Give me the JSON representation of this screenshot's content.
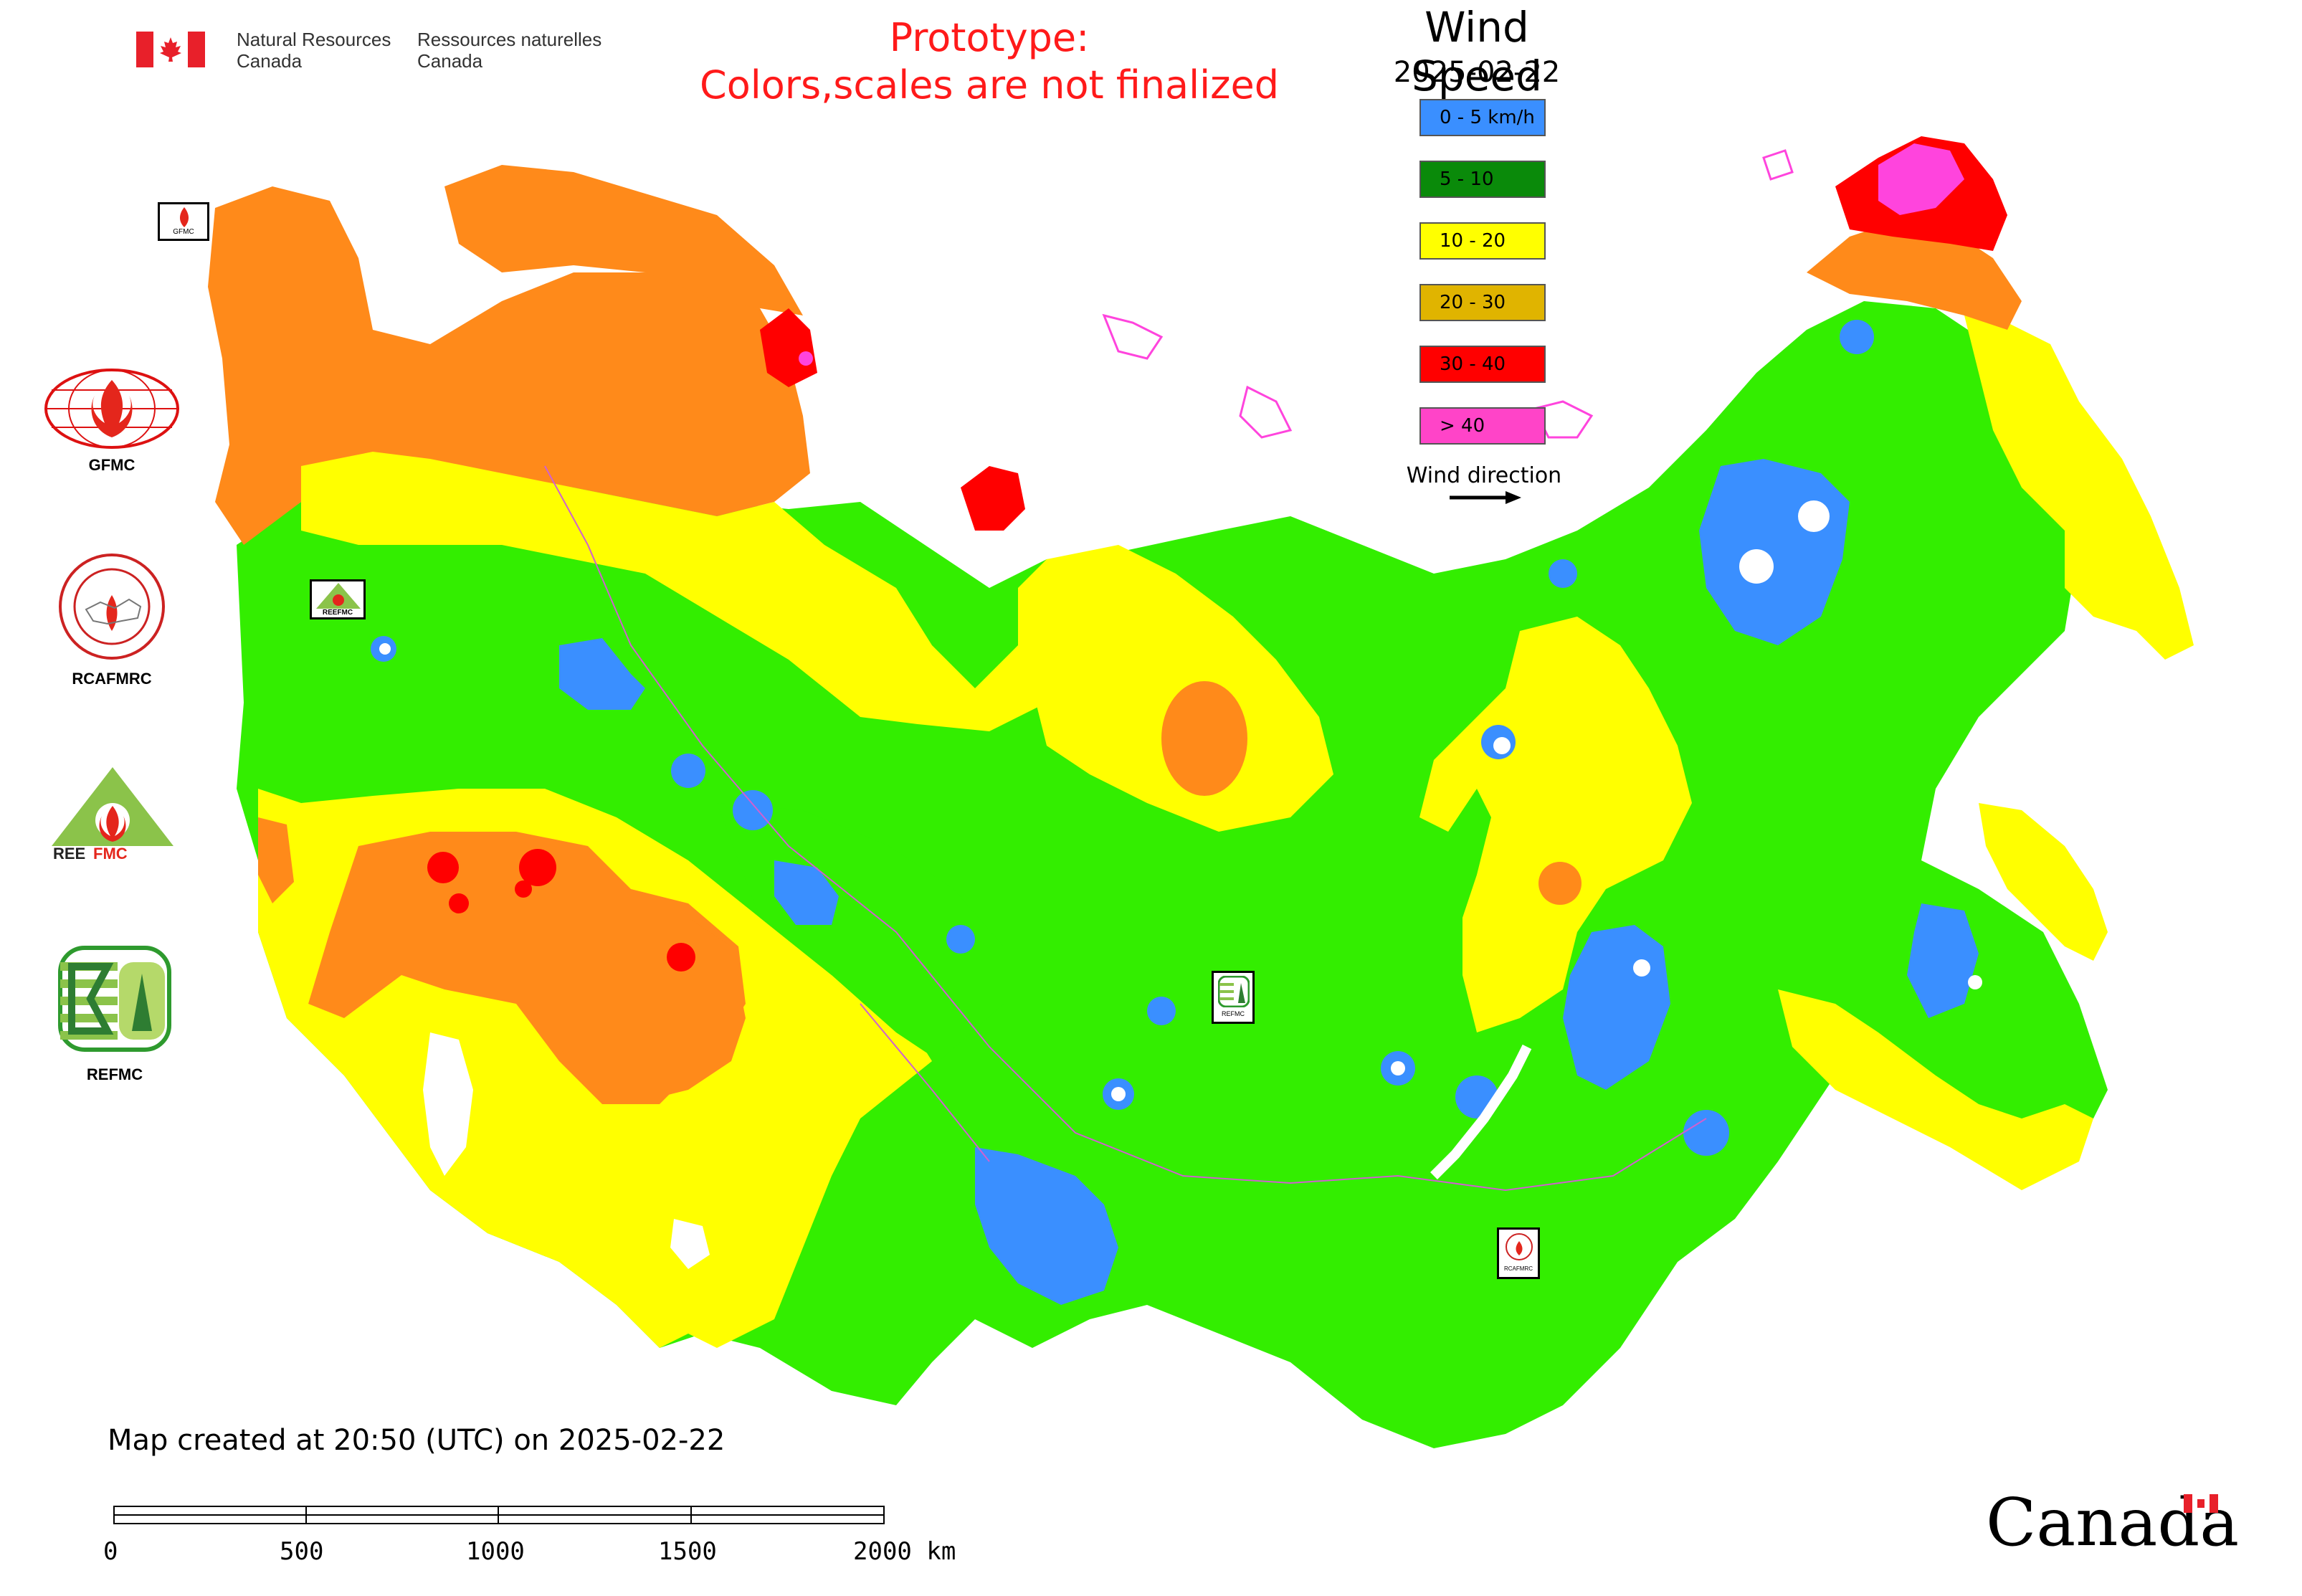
{
  "header": {
    "nrcan_en_line1": "Natural Resources",
    "nrcan_en_line2": "Canada",
    "nrcan_fr_line1": "Ressources naturelles",
    "nrcan_fr_line2": "Canada",
    "prototype_line1": "Prototype:",
    "prototype_line2": "Colors,scales are not finalized"
  },
  "legend": {
    "title": "Wind Speed",
    "date": "2025-02-22",
    "items": [
      {
        "label": "0 - 5 km/h",
        "color": "#3a8fff"
      },
      {
        "label": "5 - 10",
        "color": "#0a8a0a"
      },
      {
        "label": "10 - 20",
        "color": "#ffff00"
      },
      {
        "label": "20 - 30",
        "color": "#e0b400"
      },
      {
        "label": "30 - 40",
        "color": "#ff0000"
      },
      {
        "label": "> 40",
        "color": "#ff44c8"
      }
    ],
    "wind_direction_label": "Wind direction"
  },
  "map_colors": {
    "green": "#33ee00",
    "yellow": "#ffff00",
    "orange": "#ff8a1a",
    "red": "#ff0000",
    "blue": "#3a8fff",
    "magenta": "#ff44dd",
    "water": "#ffffff"
  },
  "organizations": [
    {
      "label": "GFMC"
    },
    {
      "label": "RCAFMRC"
    },
    {
      "label": "REEFMC"
    },
    {
      "label": "REFMC"
    }
  ],
  "map_badges": {
    "gfmc": "GFMC",
    "reefmc": "REEFMC",
    "refmc": "REFMC",
    "rcafmrc": "RCAFMRC"
  },
  "footer": {
    "created": "Map created at 20:50 (UTC) on 2025-02-22",
    "scale_labels": [
      "0",
      "500",
      "1000",
      "1500",
      "2000 km"
    ],
    "canada_wordmark": "Canada"
  }
}
